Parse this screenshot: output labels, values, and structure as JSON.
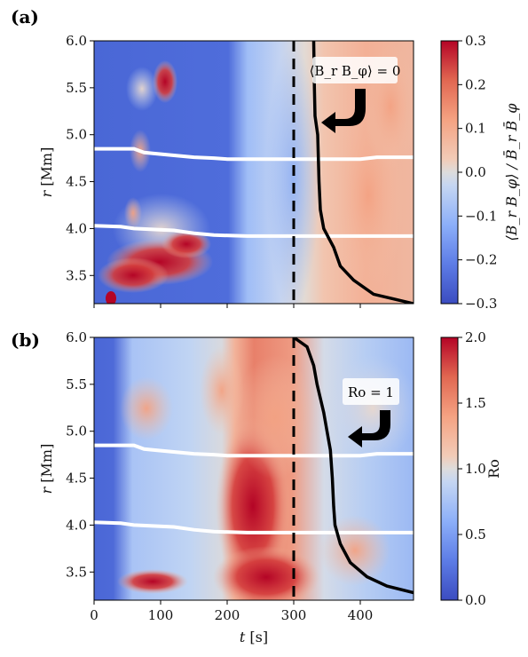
{
  "chart_data": [
    {
      "type": "heatmap",
      "panel_label": "(a)",
      "ylabel_var": "r",
      "ylabel_unit": "[Mm]",
      "xlim": [
        0,
        480
      ],
      "ylim": [
        3.2,
        6.0
      ],
      "yticks": [
        "6.0",
        "5.5",
        "5.0",
        "4.5",
        "4.0",
        "3.5"
      ],
      "ytick_values": [
        6.0,
        5.5,
        5.0,
        4.5,
        4.0,
        3.5
      ],
      "colorbar": {
        "label": "⟨B_r B_φ⟩ / B̄_r B̄_φ",
        "min": -0.3,
        "max": 0.3,
        "ticks": [
          "0.3",
          "0.2",
          "0.1",
          "0.0",
          "−0.1",
          "−0.2",
          "−0.3"
        ],
        "tick_values": [
          0.3,
          0.2,
          0.1,
          0.0,
          -0.1,
          -0.2,
          -0.3
        ]
      },
      "annotation": "⟨B_r B_φ⟩ = 0",
      "dashed_line_t": 300,
      "contour_label": "⟨B_r B_φ⟩ = 0",
      "contour": [
        [
          330,
          6.0
        ],
        [
          331,
          5.5
        ],
        [
          332,
          5.2
        ],
        [
          336,
          5.0
        ],
        [
          338,
          4.5
        ],
        [
          340,
          4.2
        ],
        [
          345,
          4.0
        ],
        [
          360,
          3.8
        ],
        [
          370,
          3.6
        ],
        [
          390,
          3.45
        ],
        [
          420,
          3.3
        ],
        [
          450,
          3.25
        ],
        [
          480,
          3.2
        ]
      ],
      "white_line_upper": [
        [
          0,
          4.85
        ],
        [
          60,
          4.85
        ],
        [
          75,
          4.81
        ],
        [
          90,
          4.8
        ],
        [
          120,
          4.78
        ],
        [
          150,
          4.76
        ],
        [
          180,
          4.75
        ],
        [
          200,
          4.74
        ],
        [
          230,
          4.74
        ],
        [
          300,
          4.74
        ],
        [
          400,
          4.74
        ],
        [
          425,
          4.76
        ],
        [
          480,
          4.76
        ]
      ],
      "white_line_lower": [
        [
          0,
          4.03
        ],
        [
          40,
          4.02
        ],
        [
          60,
          4.0
        ],
        [
          120,
          3.98
        ],
        [
          150,
          3.95
        ],
        [
          180,
          3.93
        ],
        [
          230,
          3.92
        ],
        [
          300,
          3.92
        ],
        [
          480,
          3.92
        ]
      ]
    },
    {
      "type": "heatmap",
      "panel_label": "(b)",
      "xlabel_var": "t",
      "xlabel_unit": "[s]",
      "ylabel_var": "r",
      "ylabel_unit": "[Mm]",
      "xlim": [
        0,
        480
      ],
      "ylim": [
        3.2,
        6.0
      ],
      "xticks": [
        "0",
        "100",
        "200",
        "300",
        "400"
      ],
      "xtick_values": [
        0,
        100,
        200,
        300,
        400
      ],
      "yticks": [
        "6.0",
        "5.5",
        "5.0",
        "4.5",
        "4.0",
        "3.5"
      ],
      "ytick_values": [
        6.0,
        5.5,
        5.0,
        4.5,
        4.0,
        3.5
      ],
      "colorbar": {
        "label": "Ro",
        "min": 0.0,
        "max": 2.0,
        "ticks": [
          "2.0",
          "1.5",
          "1.0",
          "0.5",
          "0.0"
        ],
        "tick_values": [
          2.0,
          1.5,
          1.0,
          0.5,
          0.0
        ]
      },
      "annotation": "Ro = 1",
      "dashed_line_t": 300,
      "contour_label": "Ro = 1",
      "contour": [
        [
          300,
          6.0
        ],
        [
          320,
          5.9
        ],
        [
          330,
          5.7
        ],
        [
          335,
          5.5
        ],
        [
          345,
          5.2
        ],
        [
          350,
          5.0
        ],
        [
          355,
          4.8
        ],
        [
          358,
          4.5
        ],
        [
          360,
          4.2
        ],
        [
          362,
          4.0
        ],
        [
          370,
          3.8
        ],
        [
          385,
          3.6
        ],
        [
          410,
          3.45
        ],
        [
          440,
          3.35
        ],
        [
          480,
          3.28
        ]
      ],
      "white_line_upper": [
        [
          0,
          4.85
        ],
        [
          60,
          4.85
        ],
        [
          75,
          4.81
        ],
        [
          90,
          4.8
        ],
        [
          120,
          4.78
        ],
        [
          150,
          4.76
        ],
        [
          180,
          4.75
        ],
        [
          200,
          4.74
        ],
        [
          300,
          4.74
        ],
        [
          400,
          4.74
        ],
        [
          425,
          4.76
        ],
        [
          480,
          4.76
        ]
      ],
      "white_line_lower": [
        [
          0,
          4.03
        ],
        [
          40,
          4.02
        ],
        [
          60,
          4.0
        ],
        [
          120,
          3.98
        ],
        [
          150,
          3.95
        ],
        [
          180,
          3.93
        ],
        [
          230,
          3.92
        ],
        [
          300,
          3.92
        ],
        [
          480,
          3.92
        ]
      ]
    }
  ]
}
